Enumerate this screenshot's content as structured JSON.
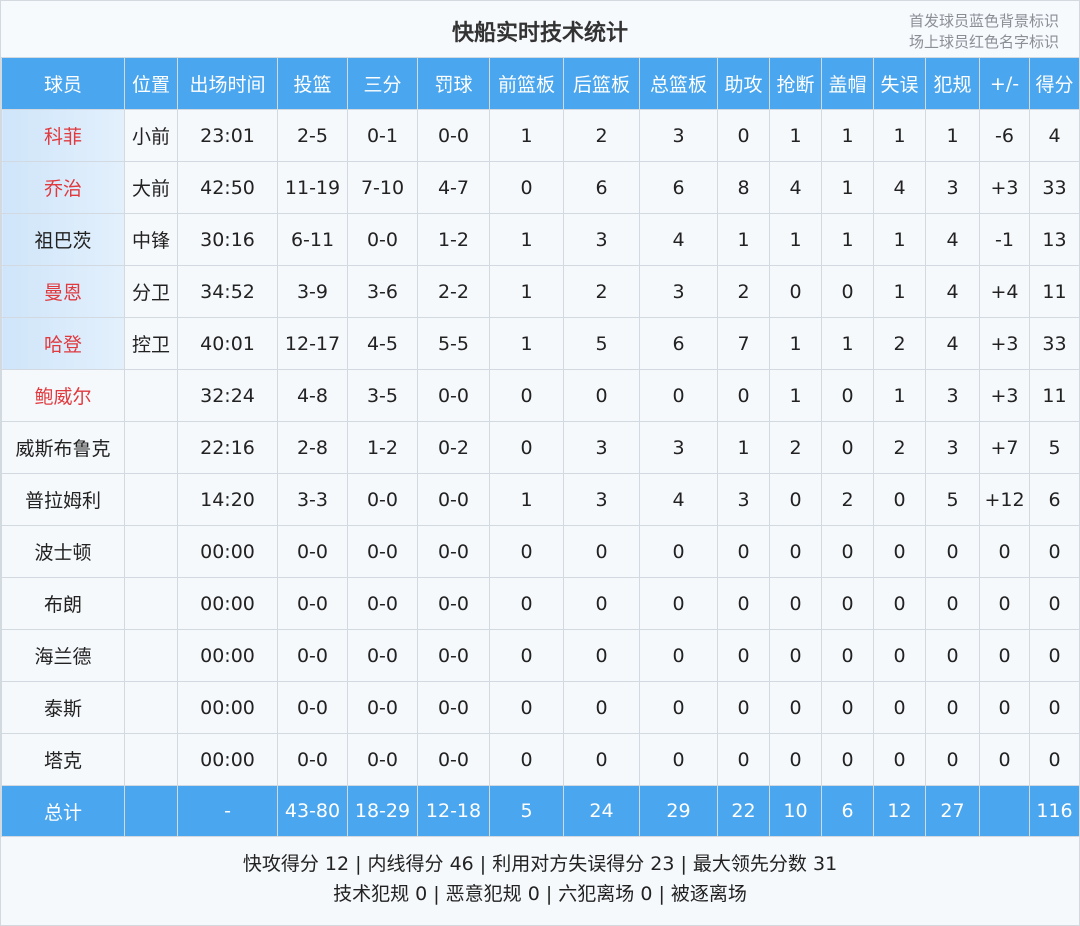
{
  "title": "快船实时技术统计",
  "legend": [
    "首发球员蓝色背景标识",
    "场上球员红色名字标识"
  ],
  "colors": {
    "header_bg": "#4aa6ef",
    "starter_bg": "#d6e9fb",
    "on_court_name": "#e0393e"
  },
  "columns": [
    "球员",
    "位置",
    "出场时间",
    "投篮",
    "三分",
    "罚球",
    "前篮板",
    "后篮板",
    "总篮板",
    "助攻",
    "抢断",
    "盖帽",
    "失误",
    "犯规",
    "+/-",
    "得分"
  ],
  "rows": [
    {
      "starter": true,
      "on_court": true,
      "cells": [
        "科菲",
        "小前",
        "23:01",
        "2-5",
        "0-1",
        "0-0",
        "1",
        "2",
        "3",
        "0",
        "1",
        "1",
        "1",
        "1",
        "-6",
        "4"
      ]
    },
    {
      "starter": true,
      "on_court": true,
      "cells": [
        "乔治",
        "大前",
        "42:50",
        "11-19",
        "7-10",
        "4-7",
        "0",
        "6",
        "6",
        "8",
        "4",
        "1",
        "4",
        "3",
        "+3",
        "33"
      ]
    },
    {
      "starter": true,
      "on_court": false,
      "cells": [
        "祖巴茨",
        "中锋",
        "30:16",
        "6-11",
        "0-0",
        "1-2",
        "1",
        "3",
        "4",
        "1",
        "1",
        "1",
        "1",
        "4",
        "-1",
        "13"
      ]
    },
    {
      "starter": true,
      "on_court": true,
      "cells": [
        "曼恩",
        "分卫",
        "34:52",
        "3-9",
        "3-6",
        "2-2",
        "1",
        "2",
        "3",
        "2",
        "0",
        "0",
        "1",
        "4",
        "+4",
        "11"
      ]
    },
    {
      "starter": true,
      "on_court": true,
      "cells": [
        "哈登",
        "控卫",
        "40:01",
        "12-17",
        "4-5",
        "5-5",
        "1",
        "5",
        "6",
        "7",
        "1",
        "1",
        "2",
        "4",
        "+3",
        "33"
      ]
    },
    {
      "starter": false,
      "on_court": true,
      "cells": [
        "鲍威尔",
        "",
        "32:24",
        "4-8",
        "3-5",
        "0-0",
        "0",
        "0",
        "0",
        "0",
        "1",
        "0",
        "1",
        "3",
        "+3",
        "11"
      ]
    },
    {
      "starter": false,
      "on_court": false,
      "cells": [
        "威斯布鲁克",
        "",
        "22:16",
        "2-8",
        "1-2",
        "0-2",
        "0",
        "3",
        "3",
        "1",
        "2",
        "0",
        "2",
        "3",
        "+7",
        "5"
      ]
    },
    {
      "starter": false,
      "on_court": false,
      "cells": [
        "普拉姆利",
        "",
        "14:20",
        "3-3",
        "0-0",
        "0-0",
        "1",
        "3",
        "4",
        "3",
        "0",
        "2",
        "0",
        "5",
        "+12",
        "6"
      ]
    },
    {
      "starter": false,
      "on_court": false,
      "cells": [
        "波士顿",
        "",
        "00:00",
        "0-0",
        "0-0",
        "0-0",
        "0",
        "0",
        "0",
        "0",
        "0",
        "0",
        "0",
        "0",
        "0",
        "0"
      ]
    },
    {
      "starter": false,
      "on_court": false,
      "cells": [
        "布朗",
        "",
        "00:00",
        "0-0",
        "0-0",
        "0-0",
        "0",
        "0",
        "0",
        "0",
        "0",
        "0",
        "0",
        "0",
        "0",
        "0"
      ]
    },
    {
      "starter": false,
      "on_court": false,
      "cells": [
        "海兰德",
        "",
        "00:00",
        "0-0",
        "0-0",
        "0-0",
        "0",
        "0",
        "0",
        "0",
        "0",
        "0",
        "0",
        "0",
        "0",
        "0"
      ]
    },
    {
      "starter": false,
      "on_court": false,
      "cells": [
        "泰斯",
        "",
        "00:00",
        "0-0",
        "0-0",
        "0-0",
        "0",
        "0",
        "0",
        "0",
        "0",
        "0",
        "0",
        "0",
        "0",
        "0"
      ]
    },
    {
      "starter": false,
      "on_court": false,
      "cells": [
        "塔克",
        "",
        "00:00",
        "0-0",
        "0-0",
        "0-0",
        "0",
        "0",
        "0",
        "0",
        "0",
        "0",
        "0",
        "0",
        "0",
        "0"
      ]
    }
  ],
  "total": [
    "总计",
    "",
    "-",
    "43-80",
    "18-29",
    "12-18",
    "5",
    "24",
    "29",
    "22",
    "10",
    "6",
    "12",
    "27",
    "",
    "116"
  ],
  "footer": [
    "快攻得分 12 | 内线得分 46 | 利用对方失误得分 23 | 最大领先分数 31",
    "技术犯规 0 | 恶意犯规 0 | 六犯离场 0 | 被逐离场"
  ]
}
